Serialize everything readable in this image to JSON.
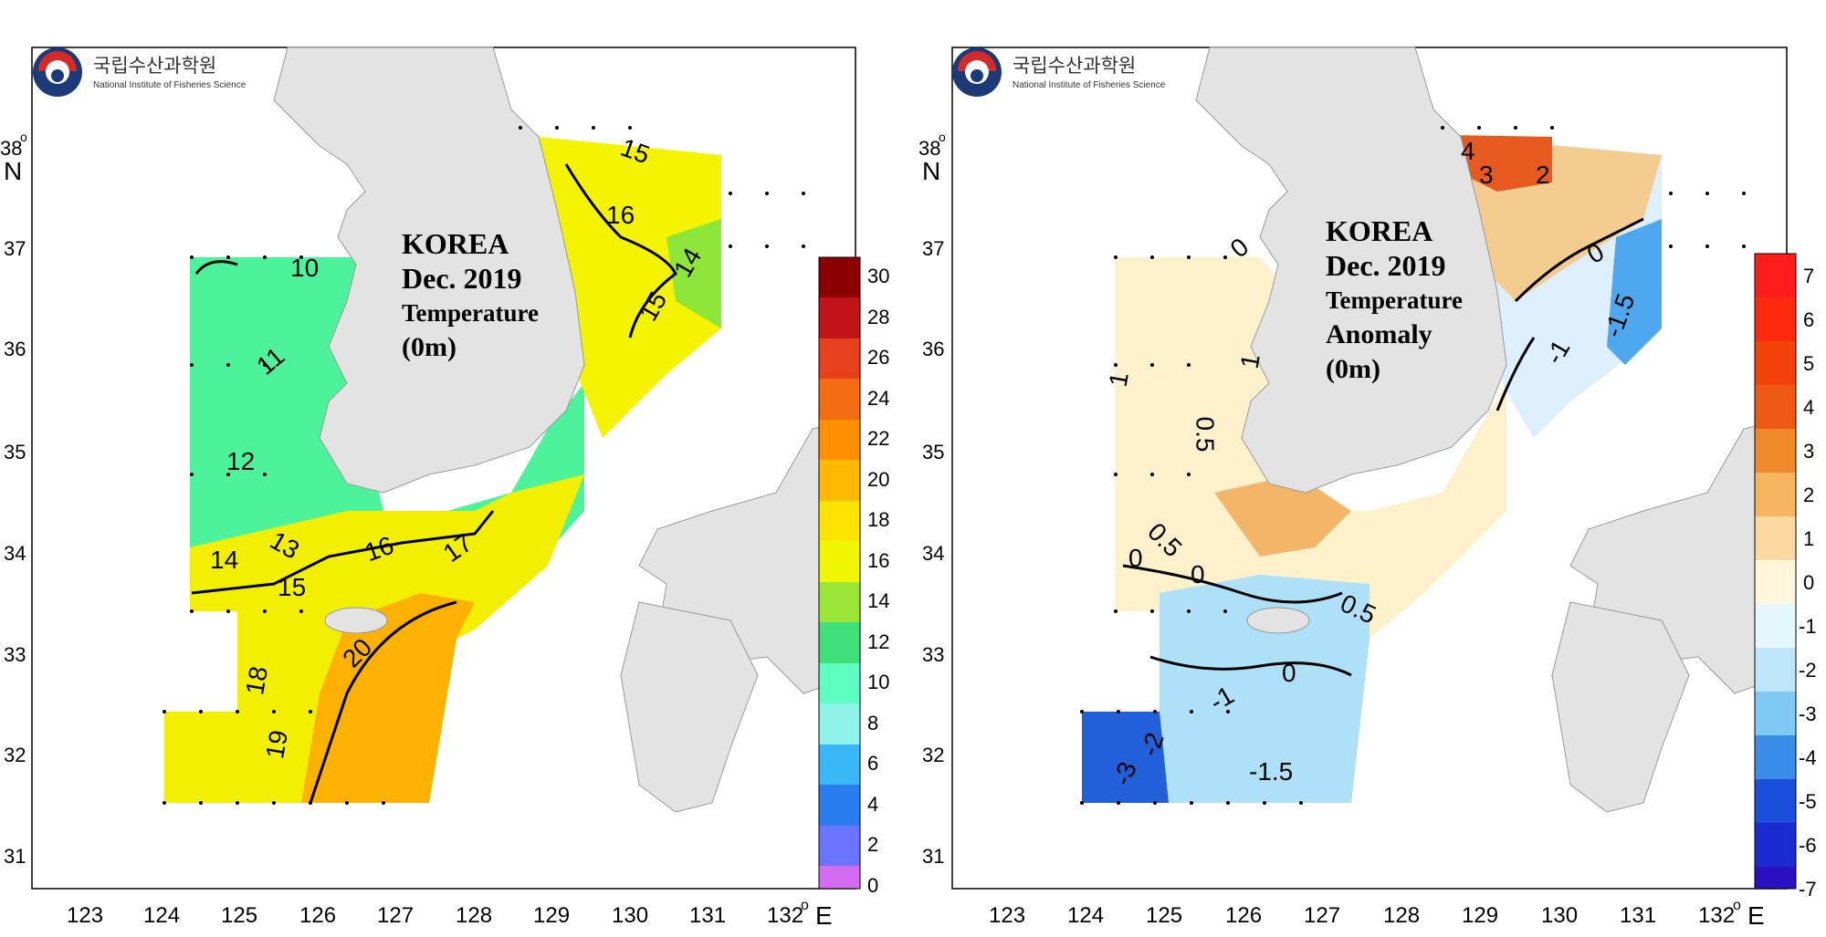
{
  "logo": {
    "korean_name": "국립수산과학원",
    "english_name": "National Institute of Fisheries Science"
  },
  "axes": {
    "longitude_ticks": [
      "123",
      "124",
      "125",
      "126",
      "127",
      "128",
      "129",
      "130",
      "131",
      "132"
    ],
    "latitude_ticks": [
      "38",
      "37",
      "36",
      "35",
      "34",
      "33",
      "32",
      "31"
    ],
    "degree_symbol": "o",
    "east_label": "E",
    "north_label": "N"
  },
  "maps": [
    {
      "title_line1": "KOREA",
      "title_line2": "Dec. 2019",
      "title_line3": "Temperature",
      "title_line4": "(0m)",
      "colorbar_ticks": [
        "30",
        "28",
        "26",
        "24",
        "22",
        "20",
        "18",
        "16",
        "14",
        "12",
        "10",
        "8",
        "6",
        "4",
        "2",
        "0"
      ],
      "contour_labels": [
        "10",
        "11",
        "12",
        "13",
        "14",
        "15",
        "16",
        "17",
        "18",
        "19",
        "20",
        "15",
        "16",
        "15",
        "14"
      ]
    },
    {
      "title_line1": "KOREA",
      "title_line2": "Dec. 2019",
      "title_line3": "Temperature",
      "title_line4": "Anomaly",
      "title_line5": "(0m)",
      "colorbar_ticks": [
        "7",
        "6",
        "5",
        "4",
        "3",
        "2",
        "1",
        "0",
        "-1",
        "-2",
        "-3",
        "-4",
        "-5",
        "-6",
        "-7"
      ],
      "contour_labels": [
        "4",
        "3",
        "2",
        "0",
        "-1",
        "-1.5",
        "1",
        "1",
        "0.5",
        "0.5",
        "0",
        "0",
        "0.5",
        "0",
        "-1",
        "-2",
        "-3",
        "-1.5",
        "0"
      ]
    }
  ],
  "colors": {
    "land": "#e3e3e3",
    "frame": "#000000"
  }
}
